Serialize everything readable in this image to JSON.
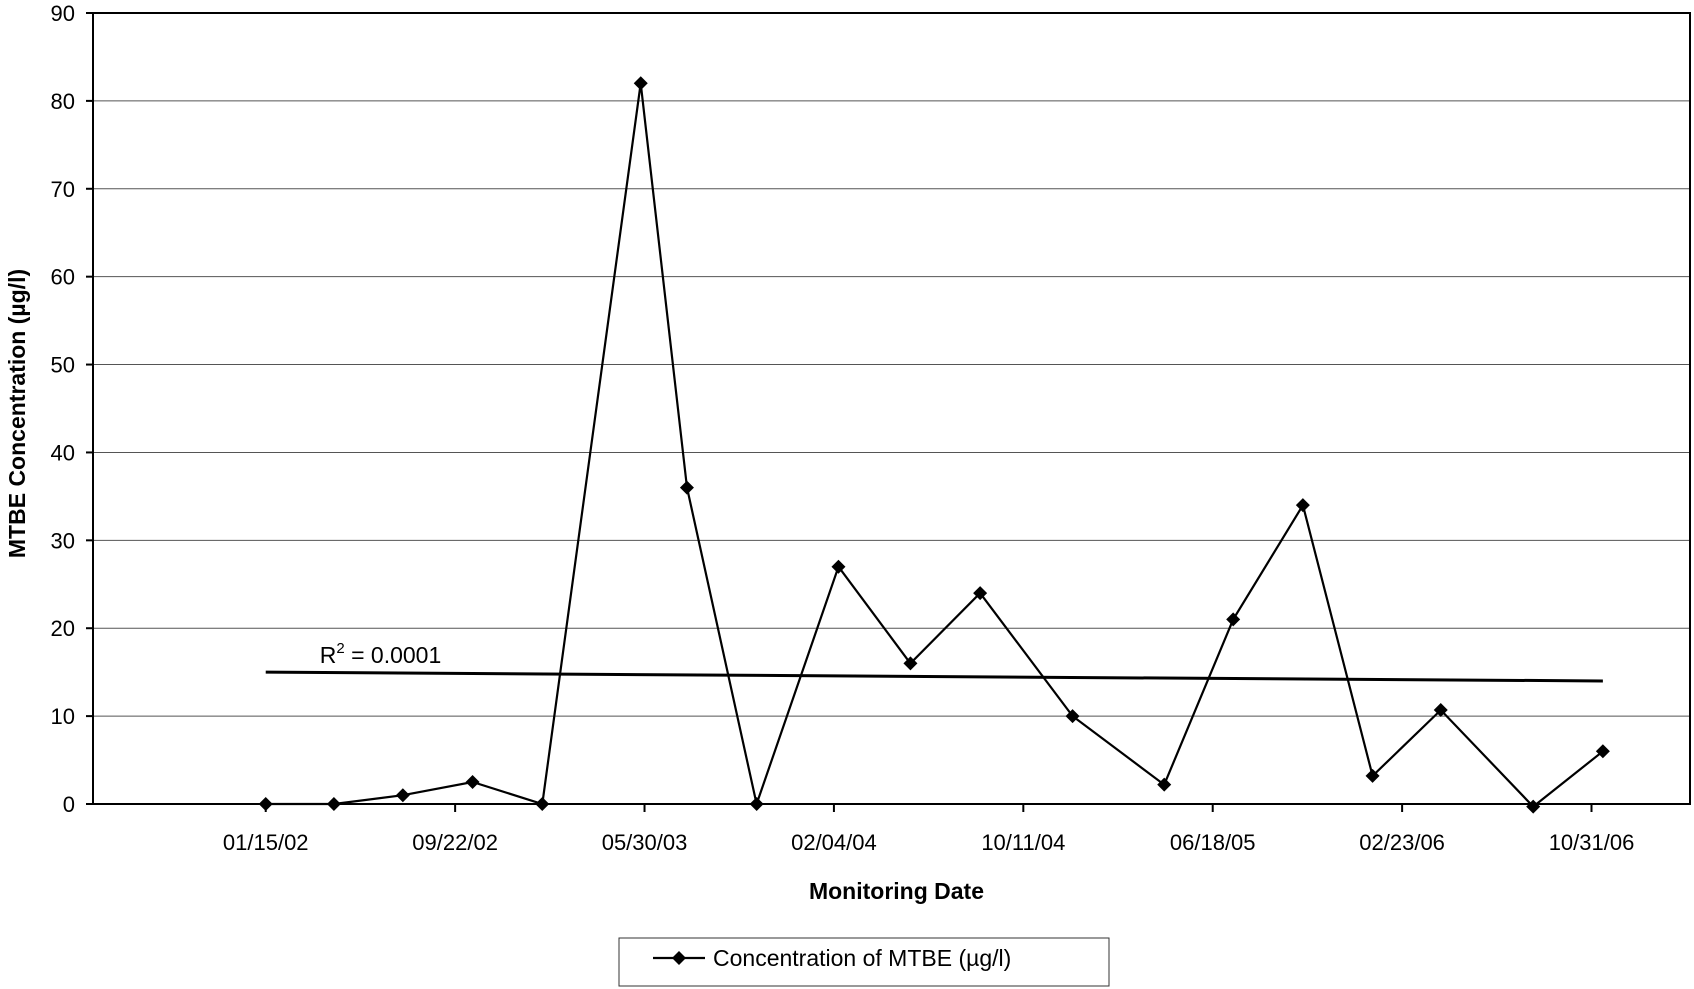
{
  "chart_data": {
    "type": "line",
    "title": "",
    "xlabel": "Monitoring Date",
    "ylabel": "MTBE Concentration (µg/l)",
    "ylim": [
      0,
      90
    ],
    "yticks": [
      0,
      10,
      20,
      30,
      40,
      50,
      60,
      70,
      80,
      90
    ],
    "xlim": [
      "2001-06-01",
      "2007-03-10"
    ],
    "xtick_labels": [
      "01/15/02",
      "09/22/02",
      "05/30/03",
      "02/04/04",
      "10/11/04",
      "06/18/05",
      "02/23/06",
      "10/31/06"
    ],
    "xtick_dates": [
      "2002-01-15",
      "2002-09-22",
      "2003-05-30",
      "2004-02-04",
      "2004-10-11",
      "2005-06-18",
      "2006-02-23",
      "2006-10-31"
    ],
    "grid": "horizontal",
    "legend_position": "bottom-center",
    "series": [
      {
        "name": "Concentration of MTBE (µg/l)",
        "color": "#000000",
        "marker": "diamond",
        "points": [
          {
            "x": "2002-01-15",
            "y": 0
          },
          {
            "x": "2002-04-15",
            "y": 0
          },
          {
            "x": "2002-07-15",
            "y": 1
          },
          {
            "x": "2002-10-15",
            "y": 2.5
          },
          {
            "x": "2003-01-15",
            "y": 0
          },
          {
            "x": "2003-05-25",
            "y": 82
          },
          {
            "x": "2003-07-25",
            "y": 36
          },
          {
            "x": "2003-10-25",
            "y": 0
          },
          {
            "x": "2004-02-10",
            "y": 27
          },
          {
            "x": "2004-05-15",
            "y": 16
          },
          {
            "x": "2004-08-15",
            "y": 24
          },
          {
            "x": "2004-12-15",
            "y": 10
          },
          {
            "x": "2005-04-15",
            "y": 2.2
          },
          {
            "x": "2005-07-15",
            "y": 21
          },
          {
            "x": "2005-10-15",
            "y": 34
          },
          {
            "x": "2006-01-15",
            "y": 3.2
          },
          {
            "x": "2006-04-15",
            "y": 10.7
          },
          {
            "x": "2006-08-15",
            "y": -0.3
          },
          {
            "x": "2006-11-15",
            "y": 6
          }
        ]
      }
    ],
    "trendline": {
      "type": "linear",
      "start": {
        "x": "2002-01-15",
        "y": 15
      },
      "end": {
        "x": "2006-11-15",
        "y": 14
      },
      "r_squared_label": "R",
      "r_squared_sup": "2",
      "r_squared_value": " = 0.0001"
    }
  }
}
